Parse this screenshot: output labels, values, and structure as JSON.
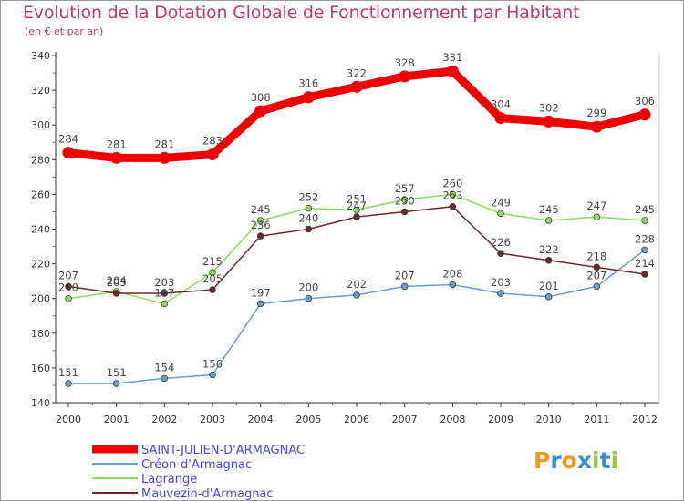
{
  "title": "Evolution de la Dotation Globale de Fonctionnement par Habitant",
  "subtitle": "(en € et par an)",
  "logo": {
    "text": "Proxiti",
    "letters": [
      "P",
      "r",
      "o",
      "x",
      "i",
      "t",
      "i"
    ],
    "colors": [
      "#f39a1e",
      "#3a8ed8",
      "#f39a1e",
      "#3a8ed8",
      "#9ac43a",
      "#3a8ed8",
      "#9ac43a"
    ]
  },
  "chart_data": {
    "type": "line",
    "x": [
      "2000",
      "2001",
      "2002",
      "2003",
      "2004",
      "2005",
      "2006",
      "2007",
      "2008",
      "2009",
      "2010",
      "2011",
      "2012"
    ],
    "ylim": [
      140,
      340
    ],
    "yticks": [
      "140",
      "160",
      "180",
      "200",
      "220",
      "240",
      "260",
      "280",
      "300",
      "320",
      "340"
    ],
    "grid": false,
    "legend_position": "bottom-left",
    "series": [
      {
        "name": "SAINT-JULIEN-D'ARMAGNAC",
        "color": "#ee0000",
        "legend_color": "#4444ff",
        "values": [
          284,
          281,
          281,
          283,
          308,
          316,
          322,
          328,
          331,
          304,
          302,
          299,
          306
        ]
      },
      {
        "name": "Créon-d'Armagnac",
        "color": "#6a9ecb",
        "legend_color": "#4444ff",
        "values": [
          151,
          151,
          154,
          156,
          197,
          200,
          202,
          207,
          208,
          203,
          201,
          207,
          228
        ]
      },
      {
        "name": "Lagrange",
        "color": "#90d860",
        "legend_color": "#4444ff",
        "values": [
          200,
          204,
          197,
          215,
          245,
          252,
          251,
          257,
          260,
          249,
          245,
          247,
          245
        ]
      },
      {
        "name": "Mauvezin-d'Armagnac",
        "color": "#6a2a2a",
        "legend_color": "#4444ff",
        "values": [
          207,
          203,
          203,
          205,
          236,
          240,
          247,
          250,
          253,
          226,
          222,
          218,
          214
        ]
      }
    ]
  }
}
